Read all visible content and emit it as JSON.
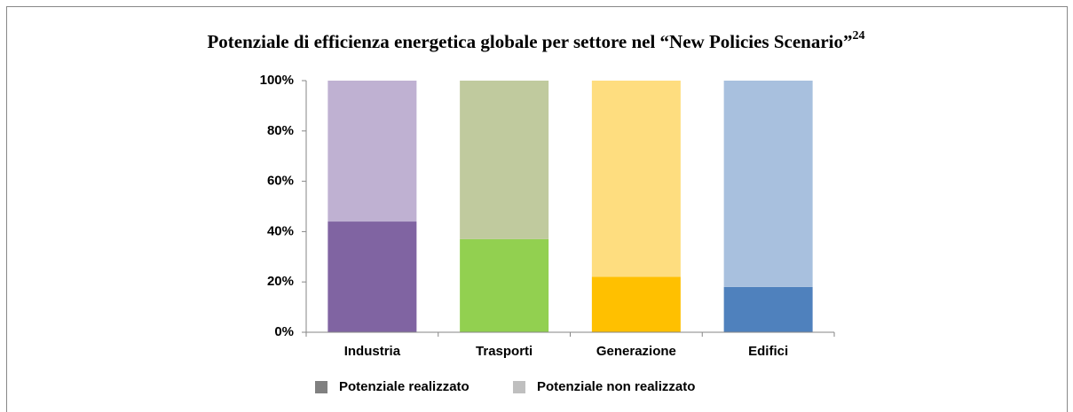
{
  "chart_data": {
    "type": "stacked_bar",
    "title": "Potenziale di efficienza energetica globale per settore nel “New Policies Scenario”",
    "title_superscript": "24",
    "categories": [
      "Industria",
      "Trasporti",
      "Generazione",
      "Edifici"
    ],
    "series": [
      {
        "name": "Potenziale realizzato",
        "color": "#808080",
        "colors": [
          "#8064a2",
          "#92d050",
          "#ffc000",
          "#4f81bd"
        ],
        "values": [
          44,
          37,
          22,
          18
        ]
      },
      {
        "name": "Potenziale non realizzato",
        "color": "#bfbfbf",
        "colors": [
          "#bfb1d2",
          "#c0ca9e",
          "#fedd7f",
          "#a8c0de"
        ],
        "values": [
          56,
          63,
          78,
          82
        ]
      }
    ],
    "ylim": [
      0,
      100
    ],
    "yticks": [
      {
        "value": 0,
        "label": "0%"
      },
      {
        "value": 20,
        "label": "20%"
      },
      {
        "value": 40,
        "label": "40%"
      },
      {
        "value": 60,
        "label": "60%"
      },
      {
        "value": 80,
        "label": "80%"
      },
      {
        "value": 100,
        "label": "100%"
      }
    ],
    "legend": "bottom"
  }
}
